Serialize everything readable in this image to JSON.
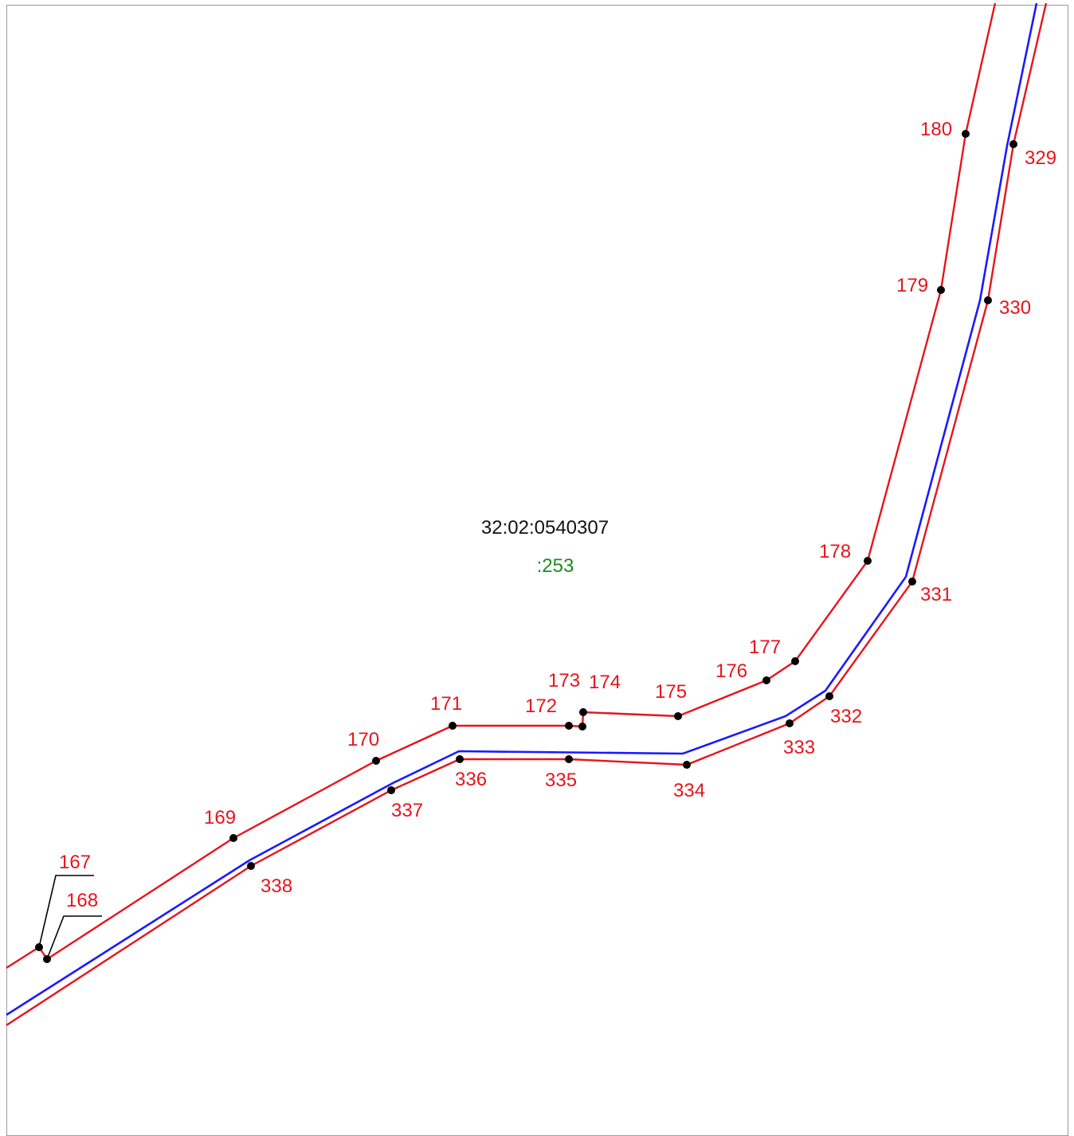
{
  "map": {
    "quarter_number": "32:02:0540307",
    "parcel_number": ":253",
    "colors": {
      "boundary": "#e8141c",
      "axis": "#1a1aff",
      "quarter_text": "#111111",
      "parcel_text": "#1f8a1f",
      "point": "#000000",
      "leader": "#000000",
      "frame": "#9a9a9a"
    },
    "points": [
      {
        "id": "167"
      },
      {
        "id": "168"
      },
      {
        "id": "169"
      },
      {
        "id": "170"
      },
      {
        "id": "171"
      },
      {
        "id": "172"
      },
      {
        "id": "173"
      },
      {
        "id": "174"
      },
      {
        "id": "175"
      },
      {
        "id": "176"
      },
      {
        "id": "177"
      },
      {
        "id": "178"
      },
      {
        "id": "179"
      },
      {
        "id": "180"
      },
      {
        "id": "329"
      },
      {
        "id": "330"
      },
      {
        "id": "331"
      },
      {
        "id": "332"
      },
      {
        "id": "333"
      },
      {
        "id": "334"
      },
      {
        "id": "335"
      },
      {
        "id": "336"
      },
      {
        "id": "337"
      },
      {
        "id": "338"
      }
    ]
  }
}
